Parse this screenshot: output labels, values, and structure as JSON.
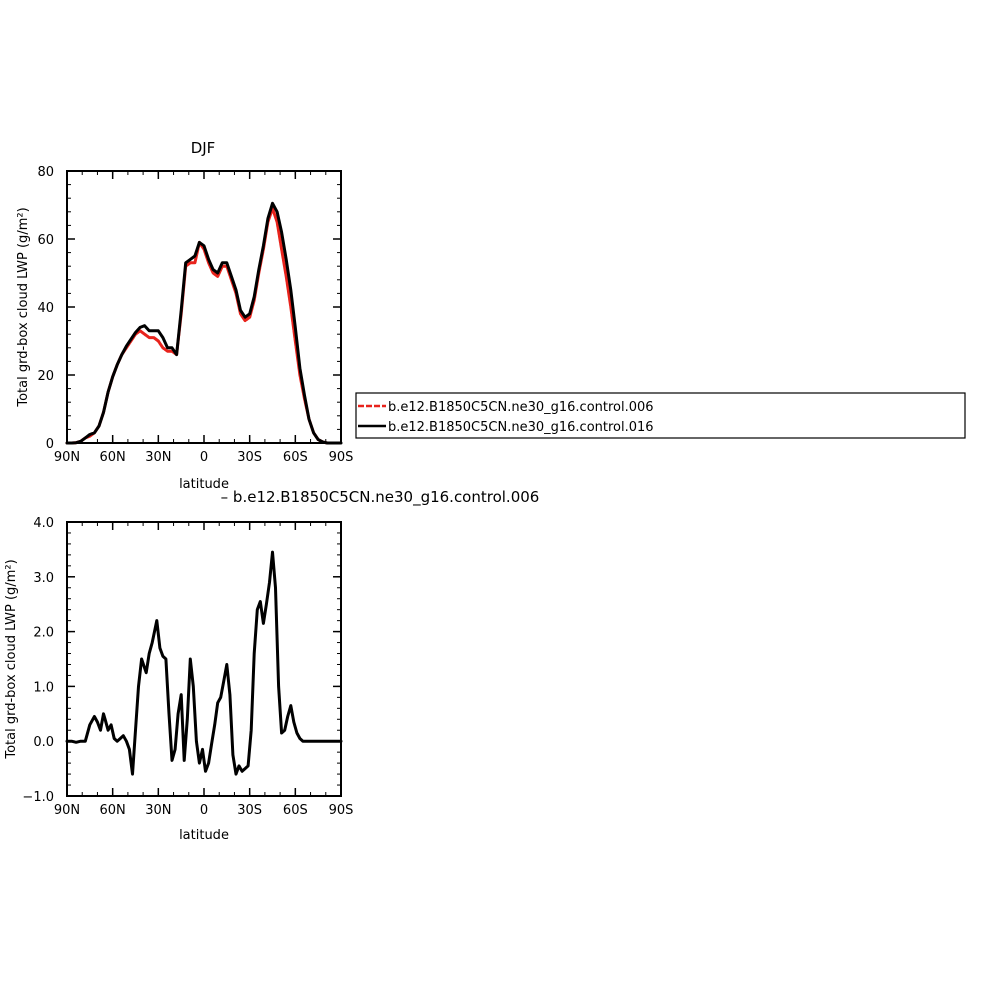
{
  "chart_data": [
    {
      "type": "line",
      "title": "DJF",
      "xlabel": "latitude",
      "ylabel": "Total grd-box cloud LWP (g/m²)",
      "xlim": [
        90,
        -90
      ],
      "ylim": [
        0,
        80
      ],
      "xticks": [
        90,
        60,
        30,
        0,
        -30,
        -60,
        -90
      ],
      "xtick_labels": [
        "90N",
        "60N",
        "30N",
        "0",
        "30S",
        "60S",
        "90S"
      ],
      "yticks": [
        0,
        20,
        40,
        60,
        80
      ],
      "ytick_labels": [
        "0",
        "20",
        "40",
        "60",
        "80"
      ],
      "legend": {
        "placement": "right"
      },
      "series": [
        {
          "name": "b.e12.B1850C5CN.ne30_g16.control.006",
          "color": "#e8231c",
          "dash": "dashed",
          "x": [
            90,
            87,
            84,
            81,
            78,
            75,
            72,
            69,
            66,
            63,
            60,
            57,
            54,
            51,
            48,
            45,
            42,
            39,
            36,
            33,
            30,
            27,
            24,
            21,
            18,
            15,
            12,
            9,
            6,
            3,
            0,
            -3,
            -6,
            -9,
            -12,
            -15,
            -18,
            -21,
            -24,
            -27,
            -30,
            -33,
            -36,
            -39,
            -42,
            -45,
            -48,
            -51,
            -54,
            -57,
            -60,
            -63,
            -66,
            -69,
            -72,
            -75,
            -78,
            -81,
            -84,
            -87,
            -90
          ],
          "values": [
            0,
            0,
            0.1,
            0.5,
            1.5,
            2,
            3,
            5,
            9,
            15,
            19.5,
            23,
            26,
            28,
            30,
            32,
            33,
            32,
            31,
            31,
            30,
            28,
            27,
            27,
            26,
            38,
            52,
            53,
            53,
            59,
            57,
            53,
            50,
            49,
            52,
            52,
            48,
            44,
            38,
            36,
            37,
            42,
            50,
            57,
            65,
            69,
            65,
            57,
            49,
            40,
            30,
            20,
            13,
            7,
            3,
            1,
            0.3,
            0,
            0,
            0,
            0
          ]
        },
        {
          "name": "b.e12.B1850C5CN.ne30_g16.control.016",
          "color": "#000000",
          "dash": "solid",
          "x": [
            90,
            87,
            84,
            81,
            78,
            75,
            72,
            69,
            66,
            63,
            60,
            57,
            54,
            51,
            48,
            45,
            42,
            39,
            36,
            33,
            30,
            27,
            24,
            21,
            18,
            15,
            12,
            9,
            6,
            3,
            0,
            -3,
            -6,
            -9,
            -12,
            -15,
            -18,
            -21,
            -24,
            -27,
            -30,
            -33,
            -36,
            -39,
            -42,
            -45,
            -48,
            -51,
            -54,
            -57,
            -60,
            -63,
            -66,
            -69,
            -72,
            -75,
            -78,
            -81,
            -84,
            -87,
            -90
          ],
          "values": [
            0,
            0,
            0.1,
            0.5,
            1.5,
            2.5,
            3,
            5,
            9,
            15,
            19.5,
            23,
            26,
            28.5,
            30.5,
            32.5,
            34,
            34.5,
            33,
            33,
            33,
            31,
            28,
            28,
            26,
            39,
            53,
            54,
            55,
            59,
            58,
            54,
            51,
            50,
            53,
            53,
            49,
            45,
            39,
            37,
            38,
            43,
            51,
            58,
            66,
            70.5,
            68,
            62,
            54,
            45,
            34,
            22,
            14,
            7,
            3,
            1,
            0.3,
            0,
            0,
            0,
            0
          ]
        }
      ]
    },
    {
      "type": "line",
      "title": "– b.e12.B1850C5CN.ne30_g16.control.006",
      "xlabel": "latitude",
      "ylabel": "Total grd-box cloud LWP (g/m²)",
      "xlim": [
        90,
        -90
      ],
      "ylim": [
        -1.0,
        4.0
      ],
      "xticks": [
        90,
        60,
        30,
        0,
        -30,
        -60,
        -90
      ],
      "xtick_labels": [
        "90N",
        "60N",
        "30N",
        "0",
        "30S",
        "60S",
        "90S"
      ],
      "yticks": [
        -1.0,
        0.0,
        1.0,
        2.0,
        3.0,
        4.0
      ],
      "ytick_labels": [
        "−1.0",
        "0.0",
        "1.0",
        "2.0",
        "3.0",
        "4.0"
      ],
      "series": [
        {
          "color": "#000000",
          "x": [
            90,
            87,
            84,
            81,
            78,
            75,
            72,
            70,
            68,
            66,
            65,
            63,
            61,
            59,
            57,
            55,
            53,
            51,
            49,
            47,
            45,
            43,
            41,
            38,
            36,
            34,
            31,
            29,
            27,
            25,
            23,
            21,
            19,
            17,
            15,
            13,
            11,
            9,
            7,
            5,
            3,
            1,
            -1,
            -3,
            -5,
            -7,
            -9,
            -11,
            -13,
            -15,
            -17,
            -19,
            -21,
            -23,
            -25,
            -27,
            -29,
            -31,
            -33,
            -35,
            -37,
            -39,
            -41,
            -43,
            -45,
            -47,
            -49,
            -51,
            -53,
            -55,
            -57,
            -59,
            -61,
            -63,
            -65,
            -67,
            -69,
            -71,
            -73,
            -75,
            -77,
            -79,
            -81,
            -84,
            -87,
            -90
          ],
          "values": [
            0,
            0,
            -0.02,
            0,
            0,
            0.3,
            0.45,
            0.35,
            0.2,
            0.5,
            0.4,
            0.2,
            0.3,
            0.05,
            0,
            0.05,
            0.1,
            0,
            -0.15,
            -0.6,
            0.2,
            1.0,
            1.5,
            1.25,
            1.6,
            1.8,
            2.2,
            1.7,
            1.55,
            1.5,
            0.5,
            -0.35,
            -0.15,
            0.5,
            0.85,
            -0.35,
            0.4,
            1.5,
            1.0,
            0,
            -0.4,
            -0.15,
            -0.55,
            -0.4,
            -0.05,
            0.3,
            0.7,
            0.8,
            1.1,
            1.4,
            0.85,
            -0.25,
            -0.6,
            -0.45,
            -0.55,
            -0.5,
            -0.45,
            0.2,
            1.6,
            2.4,
            2.55,
            2.15,
            2.5,
            2.9,
            3.45,
            2.8,
            1.0,
            0.15,
            0.2,
            0.45,
            0.65,
            0.35,
            0.15,
            0.05,
            0,
            0,
            0,
            0,
            0,
            0,
            0,
            0,
            0,
            0,
            0,
            0
          ]
        }
      ]
    }
  ]
}
